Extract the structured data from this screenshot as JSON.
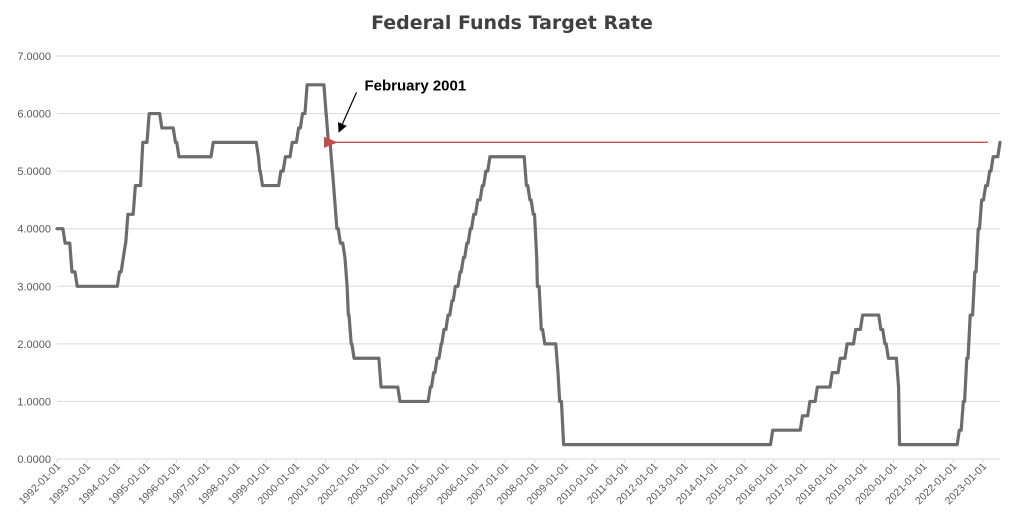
{
  "chart_data": {
    "type": "line",
    "title": "Federal Funds Target Rate",
    "xlabel": "",
    "ylabel": "",
    "ylim": [
      0,
      7
    ],
    "y_ticks": [
      "0.0000",
      "1.0000",
      "2.0000",
      "3.0000",
      "4.0000",
      "5.0000",
      "6.0000",
      "7.0000"
    ],
    "x_ticks": [
      "1992-01-01",
      "1993-01-01",
      "1994-01-01",
      "1995-01-01",
      "1996-01-01",
      "1997-01-01",
      "1998-01-01",
      "1999-01-01",
      "2000-01-01",
      "2001-01-01",
      "2002-01-01",
      "2003-01-01",
      "2004-01-01",
      "2005-01-01",
      "2006-01-01",
      "2007-01-01",
      "2008-01-01",
      "2009-01-01",
      "2010-01-01",
      "2011-01-01",
      "2012-01-01",
      "2013-01-01",
      "2014-01-01",
      "2015-01-01",
      "2016-01-01",
      "2017-01-01",
      "2018-01-01",
      "2019-01-01",
      "2020-01-01",
      "2021-01-01",
      "2022-01-01",
      "2023-01-01"
    ],
    "xlim": [
      "1992-01-01",
      "2023-07-26"
    ],
    "grid": true,
    "legend": "none",
    "line_color": "#6d6b6b",
    "series": [
      {
        "x": [
          "1992-01-01",
          "1992-04-09",
          "1992-07-02",
          "1992-09-04",
          "1992-12-31",
          "1994-02-04",
          "1994-03-22",
          "1994-04-18",
          "1994-05-17",
          "1994-08-16",
          "1994-11-15",
          "1995-02-01",
          "1995-07-06",
          "1995-12-19",
          "1996-01-31",
          "1997-03-25",
          "1998-09-29",
          "1998-10-15",
          "1998-11-17",
          "1999-06-30",
          "1999-08-24",
          "1999-11-16",
          "2000-02-02",
          "2000-03-21",
          "2000-05-16",
          "2001-01-03",
          "2001-01-31",
          "2001-03-20",
          "2001-04-18",
          "2001-05-15",
          "2001-06-27",
          "2001-08-21",
          "2001-09-17",
          "2001-10-02",
          "2001-11-06",
          "2001-12-11",
          "2002-11-06",
          "2003-06-25",
          "2004-06-30",
          "2004-08-10",
          "2004-09-21",
          "2004-11-10",
          "2004-12-14",
          "2005-02-02",
          "2005-03-22",
          "2005-05-03",
          "2005-06-30",
          "2005-08-09",
          "2005-09-20",
          "2005-11-01",
          "2005-12-13",
          "2006-01-31",
          "2006-03-28",
          "2006-05-10",
          "2006-06-29",
          "2007-09-18",
          "2007-10-31",
          "2007-12-11",
          "2008-01-22",
          "2008-01-30",
          "2008-03-18",
          "2008-04-30",
          "2008-10-08",
          "2008-10-29",
          "2008-12-16",
          "2015-12-16",
          "2016-12-14",
          "2017-03-15",
          "2017-06-14",
          "2017-12-13",
          "2018-03-21",
          "2018-06-13",
          "2018-09-26",
          "2018-12-19",
          "2019-07-31",
          "2019-09-18",
          "2019-10-30",
          "2020-03-03",
          "2020-03-15",
          "2022-03-16",
          "2022-05-04",
          "2022-06-15",
          "2022-07-27",
          "2022-09-21",
          "2022-11-02",
          "2022-12-14",
          "2023-02-01",
          "2023-03-22",
          "2023-05-03",
          "2023-07-26"
        ],
        "values": [
          4.0,
          3.75,
          3.25,
          3.0,
          3.0,
          3.25,
          3.5,
          3.75,
          4.25,
          4.75,
          5.5,
          6.0,
          5.75,
          5.5,
          5.25,
          5.5,
          5.25,
          5.0,
          4.75,
          5.0,
          5.25,
          5.5,
          5.75,
          6.0,
          6.5,
          6.0,
          5.5,
          5.0,
          4.5,
          4.0,
          3.75,
          3.5,
          3.0,
          2.5,
          2.0,
          1.75,
          1.25,
          1.0,
          1.25,
          1.5,
          1.75,
          2.0,
          2.25,
          2.5,
          2.75,
          3.0,
          3.25,
          3.5,
          3.75,
          4.0,
          4.25,
          4.5,
          4.75,
          5.0,
          5.25,
          4.75,
          4.5,
          4.25,
          3.5,
          3.0,
          2.25,
          2.0,
          1.5,
          1.0,
          0.25,
          0.5,
          0.75,
          1.0,
          1.25,
          1.5,
          1.75,
          2.0,
          2.25,
          2.5,
          2.25,
          2.0,
          1.75,
          1.25,
          0.25,
          0.5,
          1.0,
          1.75,
          2.5,
          3.25,
          4.0,
          4.5,
          4.75,
          5.0,
          5.25,
          5.5
        ]
      }
    ],
    "annotation": {
      "text": "February 2001",
      "point_date": "2001-02-01",
      "point_value": 5.5,
      "reference_line_value": 5.5,
      "reference_line_color": "#c0504d"
    }
  }
}
